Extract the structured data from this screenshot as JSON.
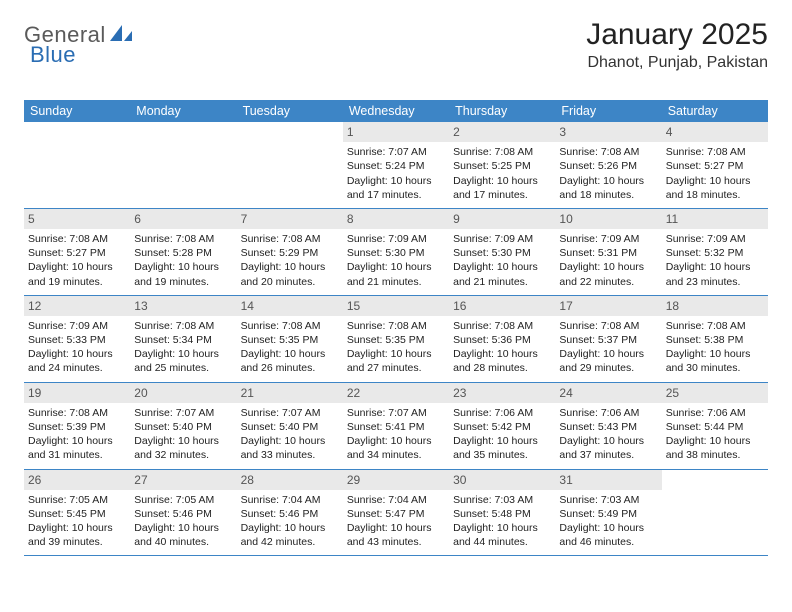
{
  "brand": {
    "name_part1": "General",
    "name_part2": "Blue",
    "icon_color": "#2a6db3",
    "text_color_gray": "#5a5a5a",
    "text_color_blue": "#2a6db3"
  },
  "header": {
    "month_title": "January 2025",
    "location": "Dhanot, Punjab, Pakistan"
  },
  "colors": {
    "header_bar": "#3d85c6",
    "week_divider": "#3d85c6",
    "daynum_bg": "#e9e9e9",
    "daynum_text": "#555555",
    "body_text": "#222222",
    "background": "#ffffff"
  },
  "weekdays": [
    "Sunday",
    "Monday",
    "Tuesday",
    "Wednesday",
    "Thursday",
    "Friday",
    "Saturday"
  ],
  "weeks": [
    [
      null,
      null,
      null,
      {
        "n": "1",
        "sunrise": "Sunrise: 7:07 AM",
        "sunset": "Sunset: 5:24 PM",
        "d1": "Daylight: 10 hours",
        "d2": "and 17 minutes."
      },
      {
        "n": "2",
        "sunrise": "Sunrise: 7:08 AM",
        "sunset": "Sunset: 5:25 PM",
        "d1": "Daylight: 10 hours",
        "d2": "and 17 minutes."
      },
      {
        "n": "3",
        "sunrise": "Sunrise: 7:08 AM",
        "sunset": "Sunset: 5:26 PM",
        "d1": "Daylight: 10 hours",
        "d2": "and 18 minutes."
      },
      {
        "n": "4",
        "sunrise": "Sunrise: 7:08 AM",
        "sunset": "Sunset: 5:27 PM",
        "d1": "Daylight: 10 hours",
        "d2": "and 18 minutes."
      }
    ],
    [
      {
        "n": "5",
        "sunrise": "Sunrise: 7:08 AM",
        "sunset": "Sunset: 5:27 PM",
        "d1": "Daylight: 10 hours",
        "d2": "and 19 minutes."
      },
      {
        "n": "6",
        "sunrise": "Sunrise: 7:08 AM",
        "sunset": "Sunset: 5:28 PM",
        "d1": "Daylight: 10 hours",
        "d2": "and 19 minutes."
      },
      {
        "n": "7",
        "sunrise": "Sunrise: 7:08 AM",
        "sunset": "Sunset: 5:29 PM",
        "d1": "Daylight: 10 hours",
        "d2": "and 20 minutes."
      },
      {
        "n": "8",
        "sunrise": "Sunrise: 7:09 AM",
        "sunset": "Sunset: 5:30 PM",
        "d1": "Daylight: 10 hours",
        "d2": "and 21 minutes."
      },
      {
        "n": "9",
        "sunrise": "Sunrise: 7:09 AM",
        "sunset": "Sunset: 5:30 PM",
        "d1": "Daylight: 10 hours",
        "d2": "and 21 minutes."
      },
      {
        "n": "10",
        "sunrise": "Sunrise: 7:09 AM",
        "sunset": "Sunset: 5:31 PM",
        "d1": "Daylight: 10 hours",
        "d2": "and 22 minutes."
      },
      {
        "n": "11",
        "sunrise": "Sunrise: 7:09 AM",
        "sunset": "Sunset: 5:32 PM",
        "d1": "Daylight: 10 hours",
        "d2": "and 23 minutes."
      }
    ],
    [
      {
        "n": "12",
        "sunrise": "Sunrise: 7:09 AM",
        "sunset": "Sunset: 5:33 PM",
        "d1": "Daylight: 10 hours",
        "d2": "and 24 minutes."
      },
      {
        "n": "13",
        "sunrise": "Sunrise: 7:08 AM",
        "sunset": "Sunset: 5:34 PM",
        "d1": "Daylight: 10 hours",
        "d2": "and 25 minutes."
      },
      {
        "n": "14",
        "sunrise": "Sunrise: 7:08 AM",
        "sunset": "Sunset: 5:35 PM",
        "d1": "Daylight: 10 hours",
        "d2": "and 26 minutes."
      },
      {
        "n": "15",
        "sunrise": "Sunrise: 7:08 AM",
        "sunset": "Sunset: 5:35 PM",
        "d1": "Daylight: 10 hours",
        "d2": "and 27 minutes."
      },
      {
        "n": "16",
        "sunrise": "Sunrise: 7:08 AM",
        "sunset": "Sunset: 5:36 PM",
        "d1": "Daylight: 10 hours",
        "d2": "and 28 minutes."
      },
      {
        "n": "17",
        "sunrise": "Sunrise: 7:08 AM",
        "sunset": "Sunset: 5:37 PM",
        "d1": "Daylight: 10 hours",
        "d2": "and 29 minutes."
      },
      {
        "n": "18",
        "sunrise": "Sunrise: 7:08 AM",
        "sunset": "Sunset: 5:38 PM",
        "d1": "Daylight: 10 hours",
        "d2": "and 30 minutes."
      }
    ],
    [
      {
        "n": "19",
        "sunrise": "Sunrise: 7:08 AM",
        "sunset": "Sunset: 5:39 PM",
        "d1": "Daylight: 10 hours",
        "d2": "and 31 minutes."
      },
      {
        "n": "20",
        "sunrise": "Sunrise: 7:07 AM",
        "sunset": "Sunset: 5:40 PM",
        "d1": "Daylight: 10 hours",
        "d2": "and 32 minutes."
      },
      {
        "n": "21",
        "sunrise": "Sunrise: 7:07 AM",
        "sunset": "Sunset: 5:40 PM",
        "d1": "Daylight: 10 hours",
        "d2": "and 33 minutes."
      },
      {
        "n": "22",
        "sunrise": "Sunrise: 7:07 AM",
        "sunset": "Sunset: 5:41 PM",
        "d1": "Daylight: 10 hours",
        "d2": "and 34 minutes."
      },
      {
        "n": "23",
        "sunrise": "Sunrise: 7:06 AM",
        "sunset": "Sunset: 5:42 PM",
        "d1": "Daylight: 10 hours",
        "d2": "and 35 minutes."
      },
      {
        "n": "24",
        "sunrise": "Sunrise: 7:06 AM",
        "sunset": "Sunset: 5:43 PM",
        "d1": "Daylight: 10 hours",
        "d2": "and 37 minutes."
      },
      {
        "n": "25",
        "sunrise": "Sunrise: 7:06 AM",
        "sunset": "Sunset: 5:44 PM",
        "d1": "Daylight: 10 hours",
        "d2": "and 38 minutes."
      }
    ],
    [
      {
        "n": "26",
        "sunrise": "Sunrise: 7:05 AM",
        "sunset": "Sunset: 5:45 PM",
        "d1": "Daylight: 10 hours",
        "d2": "and 39 minutes."
      },
      {
        "n": "27",
        "sunrise": "Sunrise: 7:05 AM",
        "sunset": "Sunset: 5:46 PM",
        "d1": "Daylight: 10 hours",
        "d2": "and 40 minutes."
      },
      {
        "n": "28",
        "sunrise": "Sunrise: 7:04 AM",
        "sunset": "Sunset: 5:46 PM",
        "d1": "Daylight: 10 hours",
        "d2": "and 42 minutes."
      },
      {
        "n": "29",
        "sunrise": "Sunrise: 7:04 AM",
        "sunset": "Sunset: 5:47 PM",
        "d1": "Daylight: 10 hours",
        "d2": "and 43 minutes."
      },
      {
        "n": "30",
        "sunrise": "Sunrise: 7:03 AM",
        "sunset": "Sunset: 5:48 PM",
        "d1": "Daylight: 10 hours",
        "d2": "and 44 minutes."
      },
      {
        "n": "31",
        "sunrise": "Sunrise: 7:03 AM",
        "sunset": "Sunset: 5:49 PM",
        "d1": "Daylight: 10 hours",
        "d2": "and 46 minutes."
      },
      null
    ]
  ]
}
